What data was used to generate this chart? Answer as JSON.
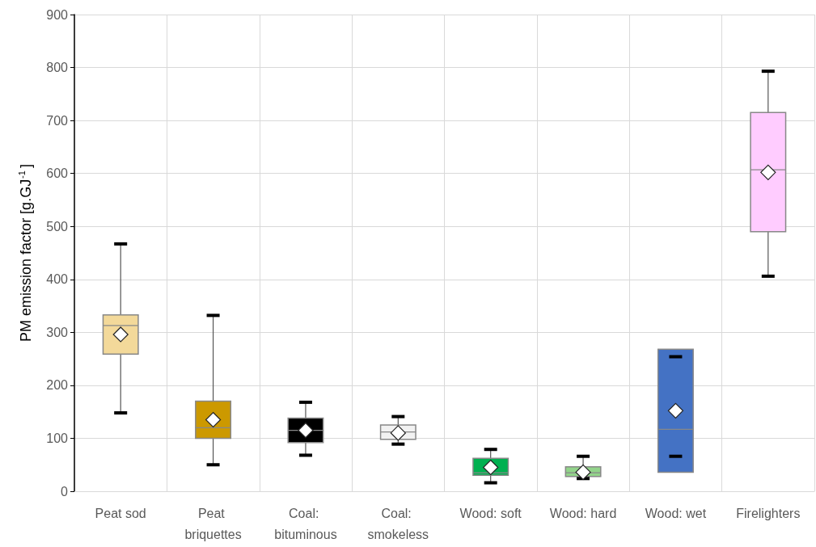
{
  "chart_data": {
    "type": "box",
    "ylabel": "PM emission factor [g.GJ$^{-1}$]",
    "categories": [
      "Peat sod",
      "Peat briquettes",
      "Coal: bituminous",
      "Coal: smokeless",
      "Wood: soft",
      "Wood: hard",
      "Wood: wet",
      "Firelighters"
    ],
    "boxes": [
      {
        "low": 148,
        "q1": 259,
        "median": 313,
        "q3": 333,
        "high": 467,
        "mean": 296
      },
      {
        "low": 50,
        "q1": 100,
        "median": 120,
        "q3": 170,
        "high": 332,
        "mean": 135
      },
      {
        "low": 68,
        "q1": 92,
        "median": 115,
        "q3": 138,
        "high": 168,
        "mean": 115
      },
      {
        "low": 89,
        "q1": 98,
        "median": 112,
        "q3": 125,
        "high": 141,
        "mean": 110
      },
      {
        "low": 16,
        "q1": 30,
        "median": 35,
        "q3": 62,
        "high": 79,
        "mean": 45
      },
      {
        "low": 24,
        "q1": 28,
        "median": 35,
        "q3": 46,
        "high": 66,
        "mean": 36
      },
      {
        "low": 66,
        "q1": 36,
        "median": 117,
        "q3": 268,
        "high": 254,
        "mean": 152
      },
      {
        "low": 406,
        "q1": 490,
        "median": 607,
        "q3": 715,
        "high": 793,
        "mean": 602
      }
    ],
    "colors": [
      "#f3d99a",
      "#cc9900",
      "#000000",
      "#f2f2f2",
      "#00b050",
      "#92d48a",
      "#4472c4",
      "#ffccff"
    ],
    "ylim": [
      0,
      900
    ],
    "yticks": [
      0,
      100,
      200,
      300,
      400,
      500,
      600,
      700,
      800,
      900
    ],
    "grid": true,
    "marker": "diamond"
  }
}
